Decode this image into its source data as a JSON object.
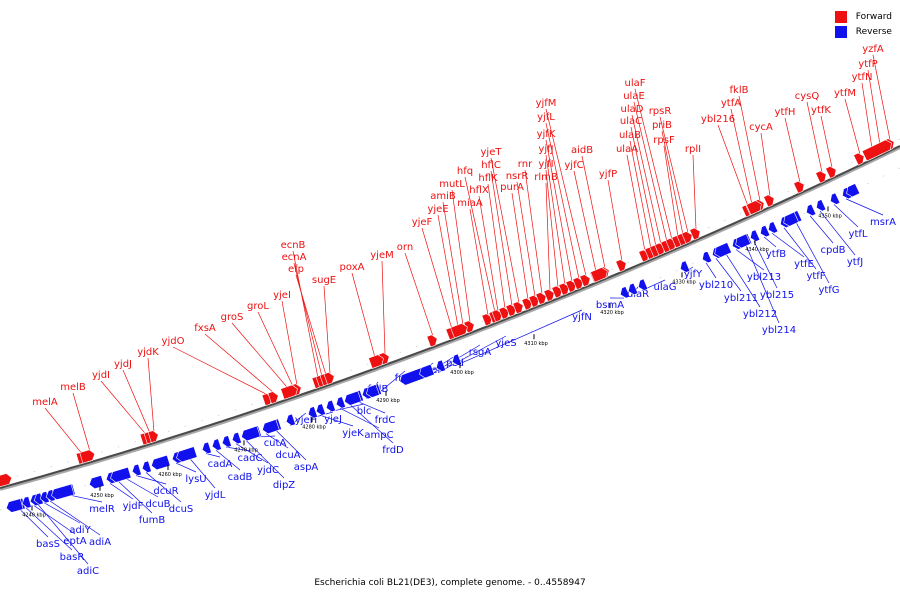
{
  "legend": [
    {
      "label": "Forward",
      "color": "#ee1111"
    },
    {
      "label": "Reverse",
      "color": "#1111ee"
    }
  ],
  "caption": "Escherichia coli BL21(DE3), complete genome. - 0..4558947",
  "ticks": [
    "4240 kbp",
    "4250 kbp",
    "4260 kbp",
    "4270 kbp",
    "4280 kbp",
    "4290 kbp",
    "4300 kbp",
    "4310 kbp",
    "4320 kbp",
    "4330 kbp",
    "4340 kbp",
    "4350 kbp"
  ],
  "forward_genes": [
    "melA",
    "melB",
    "yjdI",
    "yjdJ",
    "yjdK",
    "yjdO",
    "fxsA",
    "groS",
    "groL",
    "yjeI",
    "ecnB",
    "ecnA",
    "efp",
    "sugE",
    "poxA",
    "yjeM",
    "orn",
    "yjeF",
    "yjeE",
    "amiB",
    "mutL",
    "miaA",
    "hfq",
    "hflX",
    "hflK",
    "hflC",
    "yjeT",
    "purA",
    "nsrR",
    "rnr",
    "rlmB",
    "yjfI",
    "yjfJ",
    "yjfK",
    "yjfL",
    "yjfM",
    "yjfC",
    "aidB",
    "yjfP",
    "ulaA",
    "ulaB",
    "ulaC",
    "ulaD",
    "ulaE",
    "ulaF",
    "rpsF",
    "priB",
    "rpsR",
    "rplI",
    "ybl216",
    "ytfA",
    "fklB",
    "cycA",
    "ytfH",
    "cysQ",
    "ytfK",
    "ytfM",
    "ytfN",
    "ytfP",
    "yzfA"
  ],
  "reverse_genes": [
    "basS",
    "basR",
    "eptA",
    "adiC",
    "adiY",
    "adiA",
    "melR",
    "yjdF",
    "fumB",
    "dcuB",
    "dcuR",
    "dcuS",
    "lysU",
    "yjdL",
    "cadA",
    "cadB",
    "cadC",
    "yjdC",
    "dipZ",
    "cutA",
    "dcuA",
    "aspA",
    "yjeH",
    "yjeJ",
    "yjeK",
    "blc",
    "ampC",
    "frdD",
    "frdC",
    "frdB",
    "frdA",
    "yjeP",
    "psd",
    "rsgA",
    "yjeS",
    "yjfN",
    "bsmA",
    "ulaR",
    "ulaG",
    "yjfY",
    "ybl210",
    "ybl211",
    "ybl212",
    "ybl213",
    "ybl214",
    "ybl215",
    "ytfB",
    "ytfE",
    "ytfF",
    "ytfG",
    "cpdB",
    "ytfJ",
    "ytfL",
    "msrA"
  ]
}
